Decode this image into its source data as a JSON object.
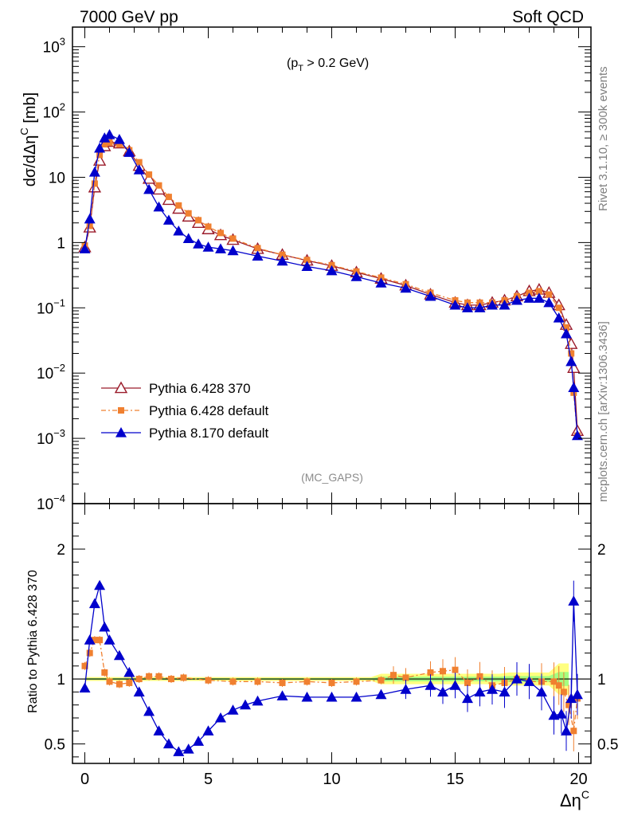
{
  "header": {
    "left": "7000 GeV pp",
    "right": "Soft QCD"
  },
  "side_labels": {
    "rivet": "Rivet 3.1.10, ≥ 300k events",
    "mcplots": "mcplots.cern.ch [arXiv:1306.3436]"
  },
  "annotations": {
    "cut": "(p_T > 0.2 GeV)",
    "cut_p": "(p",
    "cut_sub": "T",
    "cut_rest": " > 0.2 GeV)",
    "analysis": "(MC_GAPS)"
  },
  "colors": {
    "pythia6_370": "#9b1c2b",
    "pythia6_default": "#f08030",
    "pythia8_default": "#0000cc",
    "band_yellow": "#ffff80",
    "band_green": "#80ff80"
  },
  "chart_data": [
    {
      "type": "line",
      "panel": "main",
      "xlabel": "Δη^C",
      "ylabel": "dσ/dΔη^C [mb]",
      "ylabel_parts": [
        "dσ/dΔη",
        "C",
        " [mb]"
      ],
      "xlim": [
        -0.5,
        20.5
      ],
      "ylim": [
        0.0001,
        2000
      ],
      "log_y": true,
      "x_ticks": [
        "0",
        "5",
        "10",
        "15",
        "20"
      ],
      "y_ticks": [
        {
          "base": "10",
          "exp": "−4"
        },
        {
          "base": "10",
          "exp": "−3"
        },
        {
          "base": "10",
          "exp": "−2"
        },
        {
          "base": "10",
          "exp": "−1"
        },
        {
          "base": "1",
          "exp": ""
        },
        {
          "base": "10",
          "exp": ""
        },
        {
          "base": "10",
          "exp": "2"
        },
        {
          "base": "10",
          "exp": "3"
        }
      ],
      "legend_position": "bottom-left",
      "series": [
        {
          "name": "Pythia 6.428 370",
          "marker": "open-triangle",
          "points": [
            [
              0,
              0.85
            ],
            [
              0.2,
              1.7
            ],
            [
              0.4,
              7
            ],
            [
              0.6,
              18
            ],
            [
              0.8,
              30
            ],
            [
              1.0,
              35
            ],
            [
              1.4,
              33
            ],
            [
              1.8,
              25
            ],
            [
              2.2,
              15
            ],
            [
              2.6,
              9.5
            ],
            [
              3.0,
              6.5
            ],
            [
              3.4,
              4.5
            ],
            [
              3.8,
              3.3
            ],
            [
              4.2,
              2.5
            ],
            [
              4.6,
              2.0
            ],
            [
              5.0,
              1.6
            ],
            [
              5.5,
              1.3
            ],
            [
              6.0,
              1.1
            ],
            [
              7.0,
              0.8
            ],
            [
              8.0,
              0.65
            ],
            [
              9.0,
              0.53
            ],
            [
              10.0,
              0.44
            ],
            [
              11.0,
              0.35
            ],
            [
              12.0,
              0.28
            ],
            [
              13.0,
              0.22
            ],
            [
              14.0,
              0.16
            ],
            [
              15.0,
              0.12
            ],
            [
              15.5,
              0.11
            ],
            [
              16.0,
              0.11
            ],
            [
              16.5,
              0.12
            ],
            [
              17.0,
              0.13
            ],
            [
              17.5,
              0.15
            ],
            [
              18.0,
              0.18
            ],
            [
              18.4,
              0.19
            ],
            [
              18.8,
              0.17
            ],
            [
              19.2,
              0.11
            ],
            [
              19.5,
              0.055
            ],
            [
              19.7,
              0.028
            ],
            [
              19.8,
              0.012
            ],
            [
              19.95,
              0.0013
            ]
          ]
        },
        {
          "name": "Pythia 6.428 default",
          "marker": "filled-square",
          "points": [
            [
              0,
              0.9
            ],
            [
              0.2,
              1.8
            ],
            [
              0.4,
              8
            ],
            [
              0.6,
              22
            ],
            [
              0.8,
              32
            ],
            [
              1.0,
              34
            ],
            [
              1.4,
              32
            ],
            [
              1.8,
              26
            ],
            [
              2.2,
              17
            ],
            [
              2.6,
              11
            ],
            [
              3.0,
              7.5
            ],
            [
              3.4,
              5.0
            ],
            [
              3.8,
              3.7
            ],
            [
              4.2,
              2.8
            ],
            [
              4.6,
              2.2
            ],
            [
              5.0,
              1.75
            ],
            [
              5.5,
              1.4
            ],
            [
              6.0,
              1.15
            ],
            [
              7.0,
              0.82
            ],
            [
              8.0,
              0.65
            ],
            [
              9.0,
              0.54
            ],
            [
              10.0,
              0.45
            ],
            [
              11.0,
              0.36
            ],
            [
              12.0,
              0.29
            ],
            [
              13.0,
              0.23
            ],
            [
              14.0,
              0.17
            ],
            [
              15.0,
              0.13
            ],
            [
              15.5,
              0.12
            ],
            [
              16.0,
              0.12
            ],
            [
              16.5,
              0.12
            ],
            [
              17.0,
              0.13
            ],
            [
              17.5,
              0.15
            ],
            [
              18.0,
              0.17
            ],
            [
              18.4,
              0.18
            ],
            [
              18.8,
              0.16
            ],
            [
              19.2,
              0.1
            ],
            [
              19.5,
              0.05
            ],
            [
              19.7,
              0.02
            ],
            [
              19.8,
              0.005
            ],
            [
              19.95,
              0.0011
            ]
          ]
        },
        {
          "name": "Pythia 8.170 default",
          "marker": "filled-triangle",
          "points": [
            [
              0,
              0.8
            ],
            [
              0.2,
              2.3
            ],
            [
              0.4,
              12
            ],
            [
              0.6,
              28
            ],
            [
              0.8,
              40
            ],
            [
              1.0,
              45
            ],
            [
              1.4,
              38
            ],
            [
              1.8,
              24
            ],
            [
              2.2,
              13
            ],
            [
              2.6,
              6.5
            ],
            [
              3.0,
              3.5
            ],
            [
              3.4,
              2.2
            ],
            [
              3.8,
              1.5
            ],
            [
              4.2,
              1.15
            ],
            [
              4.6,
              0.95
            ],
            [
              5.0,
              0.85
            ],
            [
              5.5,
              0.8
            ],
            [
              6.0,
              0.75
            ],
            [
              7.0,
              0.62
            ],
            [
              8.0,
              0.52
            ],
            [
              9.0,
              0.43
            ],
            [
              10.0,
              0.37
            ],
            [
              11.0,
              0.3
            ],
            [
              12.0,
              0.24
            ],
            [
              13.0,
              0.2
            ],
            [
              14.0,
              0.15
            ],
            [
              15.0,
              0.11
            ],
            [
              15.5,
              0.1
            ],
            [
              16.0,
              0.1
            ],
            [
              16.5,
              0.11
            ],
            [
              17.0,
              0.11
            ],
            [
              17.5,
              0.13
            ],
            [
              18.0,
              0.14
            ],
            [
              18.4,
              0.14
            ],
            [
              18.8,
              0.12
            ],
            [
              19.2,
              0.07
            ],
            [
              19.5,
              0.04
            ],
            [
              19.7,
              0.015
            ],
            [
              19.8,
              0.006
            ],
            [
              19.95,
              0.0011
            ]
          ]
        }
      ]
    },
    {
      "type": "line",
      "panel": "ratio",
      "xlabel": "Δη^C",
      "ylabel": "Ratio to Pythia 6.428 370",
      "xlim": [
        -0.5,
        20.5
      ],
      "ylim": [
        0.35,
        2.35
      ],
      "x_ticks": [
        "0",
        "5",
        "10",
        "15",
        "20"
      ],
      "y_ticks": [
        "0.5",
        "1",
        "2"
      ],
      "reference_line": 1,
      "series": [
        {
          "name": "Pythia 6.428 default",
          "marker": "filled-square",
          "points": [
            [
              0,
              1.1
            ],
            [
              0.2,
              1.2
            ],
            [
              0.4,
              1.3
            ],
            [
              0.6,
              1.3
            ],
            [
              0.8,
              1.05
            ],
            [
              1.0,
              0.98
            ],
            [
              1.4,
              0.96
            ],
            [
              1.8,
              0.97
            ],
            [
              2.2,
              1.0
            ],
            [
              2.6,
              1.02
            ],
            [
              3.0,
              1.02
            ],
            [
              3.5,
              1.0
            ],
            [
              4.0,
              1.01
            ],
            [
              5.0,
              0.99
            ],
            [
              6.0,
              0.98
            ],
            [
              7.0,
              0.98
            ],
            [
              8.0,
              0.97
            ],
            [
              9.0,
              0.98
            ],
            [
              10.0,
              0.97
            ],
            [
              11.0,
              0.98
            ],
            [
              12.0,
              0.99
            ],
            [
              12.5,
              1.03
            ],
            [
              13.0,
              1.01
            ],
            [
              14.0,
              1.05
            ],
            [
              14.5,
              1.06
            ],
            [
              15.0,
              1.07
            ],
            [
              15.5,
              0.97
            ],
            [
              16.0,
              1.02
            ],
            [
              16.5,
              0.95
            ],
            [
              17.0,
              0.97
            ],
            [
              17.5,
              1.0
            ],
            [
              18.0,
              0.98
            ],
            [
              18.5,
              0.98
            ],
            [
              19.0,
              0.98
            ],
            [
              19.2,
              0.95
            ],
            [
              19.4,
              0.9
            ],
            [
              19.6,
              0.8
            ],
            [
              19.8,
              0.6
            ],
            [
              19.95,
              0.85
            ]
          ]
        },
        {
          "name": "Pythia 8.170 default",
          "marker": "filled-triangle",
          "points": [
            [
              0,
              0.93
            ],
            [
              0.2,
              1.3
            ],
            [
              0.4,
              1.58
            ],
            [
              0.6,
              1.72
            ],
            [
              0.8,
              1.4
            ],
            [
              1.0,
              1.3
            ],
            [
              1.4,
              1.18
            ],
            [
              1.8,
              1.05
            ],
            [
              2.2,
              0.9
            ],
            [
              2.6,
              0.75
            ],
            [
              3.0,
              0.6
            ],
            [
              3.4,
              0.5
            ],
            [
              3.8,
              0.44
            ],
            [
              4.2,
              0.46
            ],
            [
              4.6,
              0.52
            ],
            [
              5.0,
              0.6
            ],
            [
              5.5,
              0.7
            ],
            [
              6.0,
              0.76
            ],
            [
              6.5,
              0.8
            ],
            [
              7.0,
              0.83
            ],
            [
              8.0,
              0.87
            ],
            [
              9.0,
              0.86
            ],
            [
              10.0,
              0.86
            ],
            [
              11.0,
              0.86
            ],
            [
              12.0,
              0.88
            ],
            [
              13.0,
              0.92
            ],
            [
              14.0,
              0.95
            ],
            [
              14.5,
              0.9
            ],
            [
              15.0,
              0.95
            ],
            [
              15.5,
              0.85
            ],
            [
              16.0,
              0.9
            ],
            [
              16.5,
              0.92
            ],
            [
              17.0,
              0.9
            ],
            [
              17.5,
              1.0
            ],
            [
              18.0,
              0.98
            ],
            [
              18.5,
              0.9
            ],
            [
              19.0,
              0.72
            ],
            [
              19.3,
              0.73
            ],
            [
              19.5,
              0.6
            ],
            [
              19.7,
              0.85
            ],
            [
              19.8,
              1.6
            ],
            [
              19.95,
              0.88
            ]
          ]
        }
      ]
    }
  ]
}
